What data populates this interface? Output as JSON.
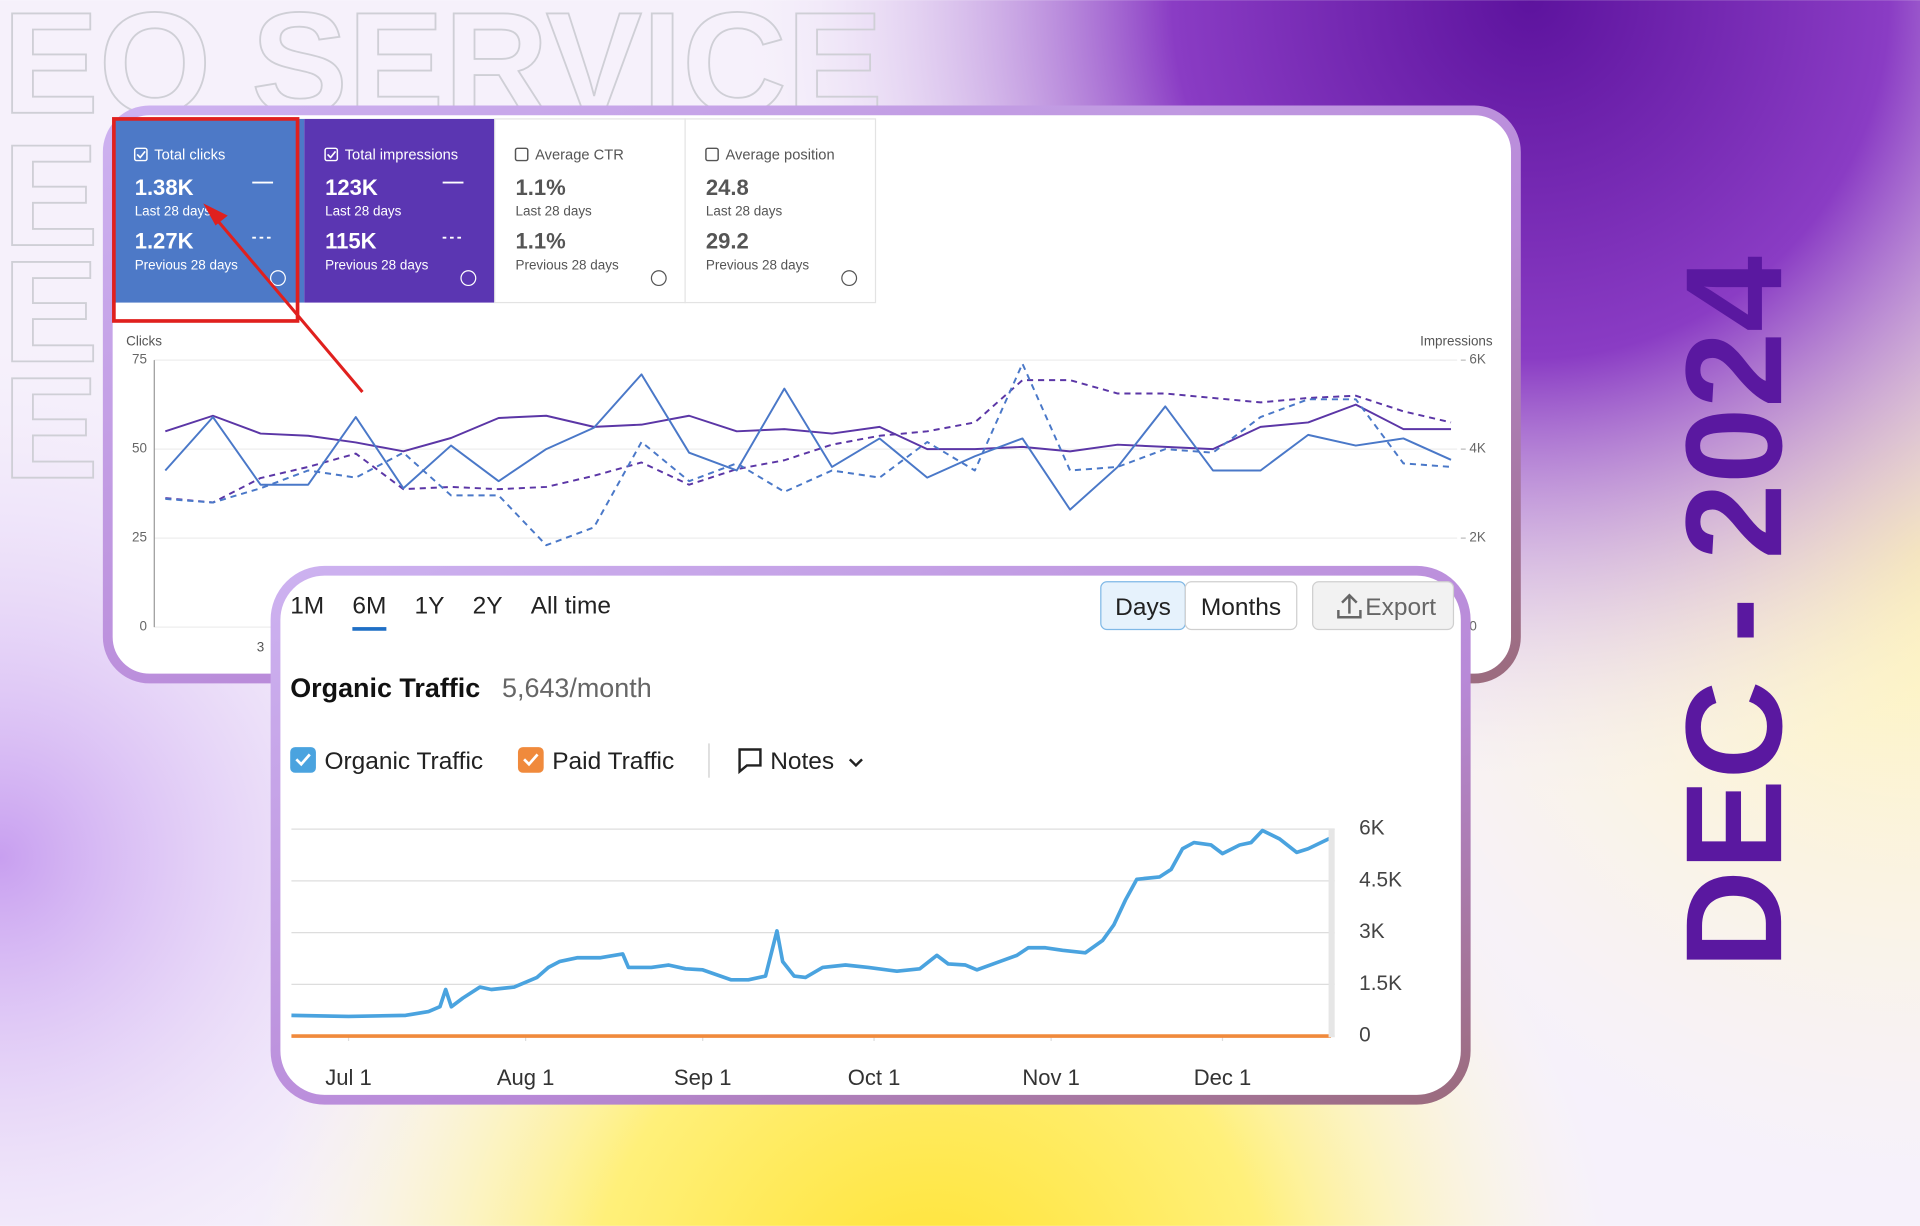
{
  "watermark": "EO SERVICE",
  "date_badge": "DEC - 2024",
  "metrics": [
    {
      "label": "Total clicks",
      "value": "1.38K",
      "current_period": "Last 28 days",
      "previous_value": "1.27K",
      "previous_period": "Previous 28 days",
      "checked": true,
      "color": "#4d79c7"
    },
    {
      "label": "Total impressions",
      "value": "123K",
      "current_period": "Last 28 days",
      "previous_value": "115K",
      "previous_period": "Previous 28 days",
      "checked": true,
      "color": "#5b36b2"
    },
    {
      "label": "Average CTR",
      "value": "1.1%",
      "current_period": "Last 28 days",
      "previous_value": "1.1%",
      "previous_period": "Previous 28 days",
      "checked": false
    },
    {
      "label": "Average position",
      "value": "24.8",
      "current_period": "Last 28 days",
      "previous_value": "29.2",
      "previous_period": "Previous 28 days",
      "checked": false
    }
  ],
  "chart_data": [
    {
      "type": "line",
      "y_label": "Clicks",
      "y2_label": "Impressions",
      "categories": [
        null,
        null,
        "3",
        null,
        null,
        null,
        null,
        null,
        null,
        null,
        null,
        null,
        null,
        null,
        null,
        null,
        null,
        null,
        null,
        null,
        null,
        null,
        null,
        null,
        null,
        null,
        null,
        null
      ],
      "series": [
        {
          "color": "#4a78c8",
          "dashed": false,
          "values": [
            44,
            59,
            40,
            40,
            59,
            39,
            51,
            41,
            50,
            56,
            71,
            49,
            44,
            67,
            45,
            53,
            42,
            48,
            53,
            33,
            45,
            62,
            44,
            44,
            54,
            51,
            53,
            47
          ]
        },
        {
          "color": "#4a78c8",
          "dashed": true,
          "values": [
            36,
            35,
            39,
            44,
            42,
            49,
            37,
            37,
            23,
            28,
            52,
            41,
            46,
            38,
            44,
            42,
            52,
            44,
            74,
            44,
            45,
            50,
            49,
            59,
            64,
            64,
            46,
            45
          ]
        },
        {
          "color": "#5b36a6",
          "dashed": false,
          "axis": "y2",
          "values": [
            4400,
            4750,
            4350,
            4300,
            4150,
            3950,
            4250,
            4700,
            4750,
            4500,
            4550,
            4750,
            4400,
            4450,
            4350,
            4500,
            4000,
            4000,
            4050,
            3950,
            4100,
            4050,
            4000,
            4500,
            4600,
            5000,
            4450,
            4450
          ]
        },
        {
          "color": "#5b36a6",
          "dashed": true,
          "axis": "y2",
          "values": [
            2900,
            2800,
            3350,
            3600,
            3900,
            3100,
            3150,
            3100,
            3150,
            3400,
            3700,
            3200,
            3550,
            3750,
            4100,
            4300,
            4400,
            4600,
            5550,
            5550,
            5250,
            5250,
            5150,
            5050,
            5150,
            5200,
            4850,
            4600
          ]
        }
      ],
      "ylim": [
        0,
        75
      ],
      "yticks": [
        0,
        25,
        50,
        75
      ],
      "y2lim": [
        0,
        6000
      ],
      "y2ticks": [
        0,
        {
          "value": 2000,
          "label": "2K"
        },
        {
          "value": 4000,
          "label": "4K"
        },
        {
          "value": 6000,
          "label": "6K"
        }
      ],
      "grid": true
    },
    {
      "type": "line",
      "title": "Organic Traffic",
      "subtitle": "5,643/month",
      "period_tabs": [
        "1M",
        "6M",
        "1Y",
        "2Y",
        "All time"
      ],
      "active_period_index": 1,
      "granularity_options": [
        "Days",
        "Months"
      ],
      "active_granularity_index": 0,
      "export_label": "Export",
      "notes_label": "Notes",
      "x": [
        -10,
        0,
        10,
        14,
        16,
        17,
        18,
        20,
        23,
        25,
        29,
        33,
        35,
        37,
        40,
        44,
        48,
        49,
        53,
        56,
        59,
        62,
        67,
        70,
        73,
        75,
        76,
        78,
        80,
        83,
        87,
        91,
        96,
        100,
        103,
        105,
        108,
        110,
        114,
        117,
        119,
        122,
        125,
        129,
        132,
        134,
        136,
        138,
        142,
        144,
        146,
        148,
        151,
        153,
        156,
        158,
        160,
        163,
        166,
        168,
        172
      ],
      "series": [
        {
          "name": "Organic Traffic",
          "color": "#4aa3df",
          "values": [
            600,
            570,
            600,
            710,
            850,
            1350,
            850,
            1100,
            1420,
            1350,
            1420,
            1700,
            1990,
            2165,
            2270,
            2270,
            2380,
            1990,
            1990,
            2060,
            1950,
            1920,
            1630,
            1630,
            1740,
            3050,
            2160,
            1740,
            1700,
            1990,
            2060,
            1990,
            1880,
            1950,
            2340,
            2090,
            2060,
            1920,
            2160,
            2340,
            2560,
            2560,
            2485,
            2415,
            2770,
            3230,
            3940,
            4545,
            4615,
            4830,
            5430,
            5610,
            5540,
            5290,
            5540,
            5610,
            5960,
            5715,
            5325,
            5430,
            5750
          ]
        },
        {
          "name": "Paid Traffic",
          "color": "#f08a3c",
          "values": [
            0,
            0,
            0,
            0,
            0,
            0,
            0,
            0,
            0,
            0,
            0,
            0,
            0,
            0,
            0,
            0,
            0,
            0,
            0,
            0,
            0,
            0,
            0,
            0,
            0,
            0,
            0,
            0,
            0,
            0,
            0,
            0,
            0,
            0,
            0,
            0,
            0,
            0,
            0,
            0,
            0,
            0,
            0,
            0,
            0,
            0,
            0,
            0,
            0,
            0,
            0,
            0,
            0,
            0,
            0,
            0,
            0,
            0,
            0,
            0,
            0
          ]
        }
      ],
      "xlim": [
        -10,
        172
      ],
      "xticks": [
        {
          "value": 0,
          "label": "Jul 1"
        },
        {
          "value": 31,
          "label": "Aug 1"
        },
        {
          "value": 62,
          "label": "Sep 1"
        },
        {
          "value": 92,
          "label": "Oct 1"
        },
        {
          "value": 123,
          "label": "Nov 1"
        },
        {
          "value": 153,
          "label": "Dec 1"
        }
      ],
      "ylim": [
        0,
        6000
      ],
      "yticks": [
        0,
        {
          "value": 1500,
          "label": "1.5K"
        },
        {
          "value": 3000,
          "label": "3K"
        },
        {
          "value": 4500,
          "label": "4.5K"
        },
        {
          "value": 6000,
          "label": "6K"
        }
      ],
      "grid": true
    }
  ]
}
